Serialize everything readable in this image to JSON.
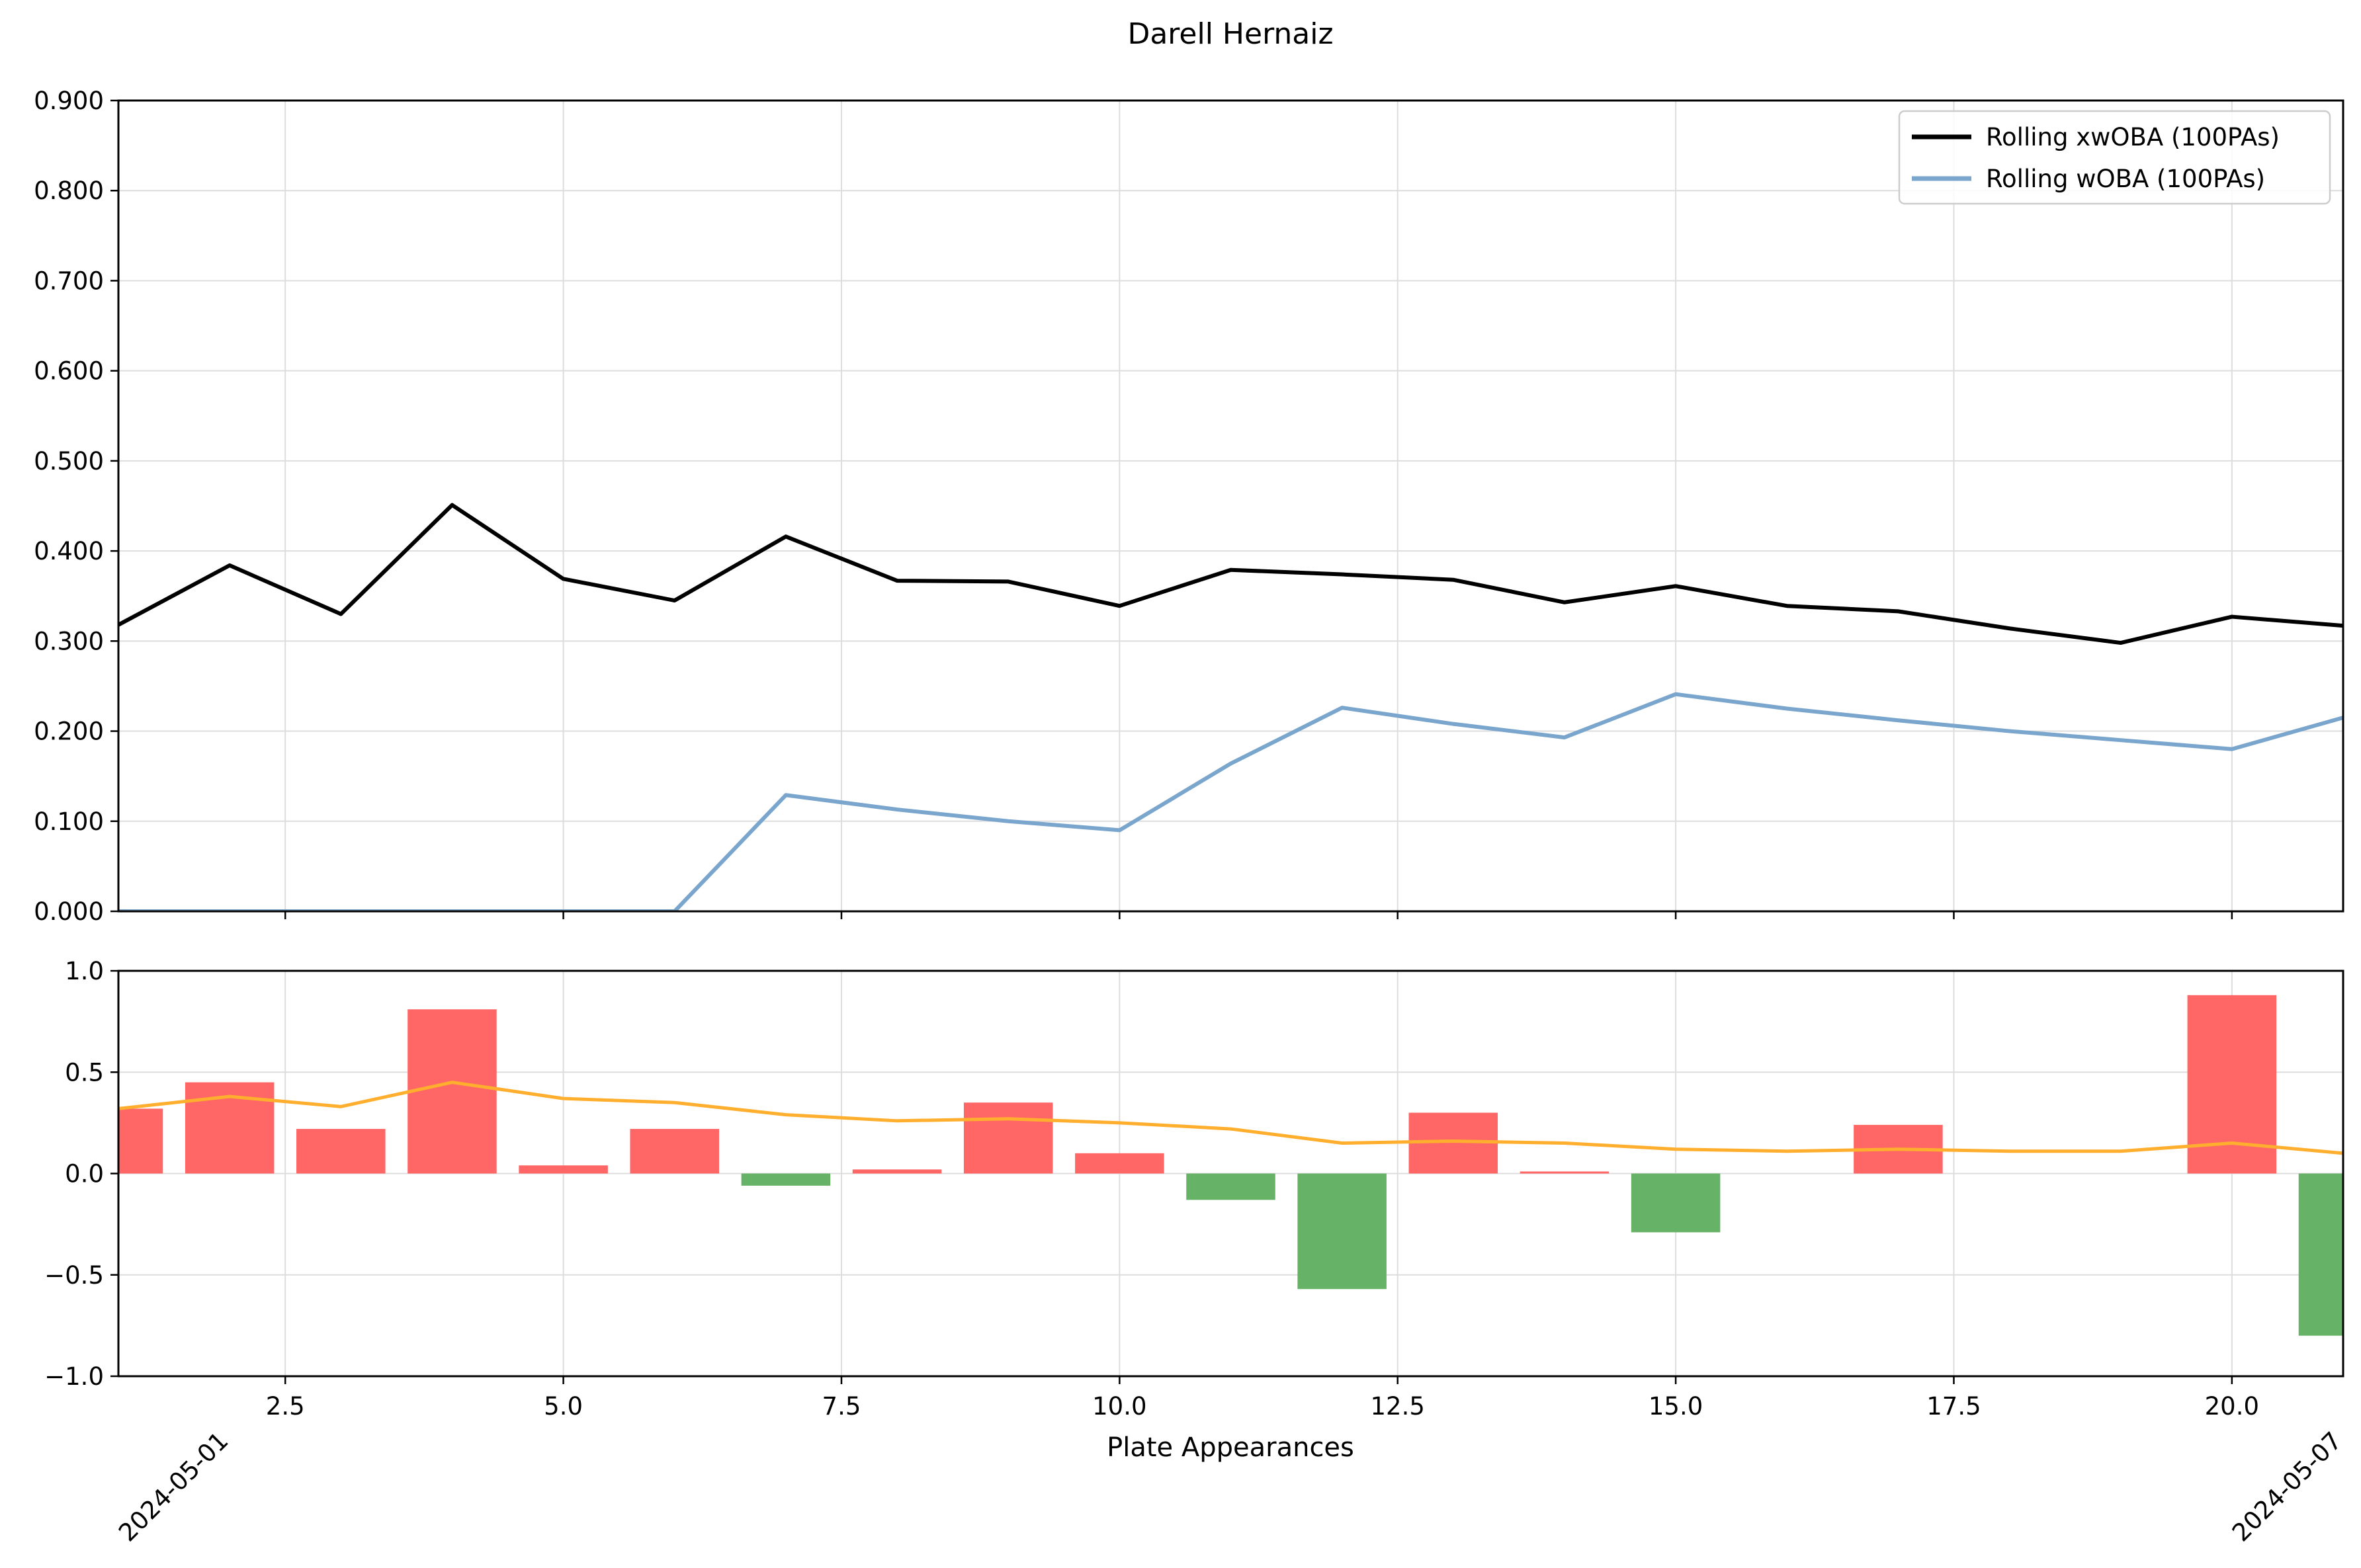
{
  "chart_data": {
    "title": "Darell Hernaiz",
    "xlabel": "Plate Appearances",
    "colors": {
      "xwoba_line": "#000000",
      "woba_line": "#7aa6cd",
      "bar_positive": "#ff6666",
      "bar_negative": "#66b266",
      "diff_line": "#ffae2e",
      "grid": "#dddddd"
    },
    "top": {
      "type": "line",
      "ylim": [
        0,
        0.9
      ],
      "yticks": [
        "0.000",
        "0.100",
        "0.200",
        "0.300",
        "0.400",
        "0.500",
        "0.600",
        "0.700",
        "0.800",
        "0.900"
      ],
      "grid": true,
      "legend_position": "top-right",
      "series": [
        {
          "name": "Rolling xwOBA (100PAs)",
          "x": [
            1,
            2,
            3,
            4,
            5,
            6,
            7,
            8,
            9,
            10,
            11,
            12,
            13,
            14,
            15,
            16,
            17,
            18,
            19,
            20,
            21
          ],
          "values": [
            0.318,
            0.384,
            0.33,
            0.451,
            0.369,
            0.345,
            0.416,
            0.367,
            0.366,
            0.339,
            0.379,
            0.374,
            0.368,
            0.343,
            0.361,
            0.339,
            0.333,
            0.314,
            0.298,
            0.327,
            0.317
          ]
        },
        {
          "name": "Rolling wOBA (100PAs)",
          "x": [
            1,
            2,
            3,
            4,
            5,
            6,
            7,
            8,
            9,
            10,
            11,
            12,
            13,
            14,
            15,
            16,
            17,
            18,
            19,
            20,
            21
          ],
          "values": [
            0.0,
            0.0,
            0.0,
            0.0,
            0.0,
            0.0,
            0.129,
            0.113,
            0.1,
            0.09,
            0.164,
            0.226,
            0.208,
            0.193,
            0.241,
            0.225,
            0.212,
            0.2,
            0.19,
            0.18,
            0.215
          ]
        }
      ]
    },
    "bottom": {
      "type": "bar",
      "ylim": [
        -1,
        1
      ],
      "yticks": [
        "−1.0",
        "−0.5",
        "0.0",
        "0.5",
        "1.0"
      ],
      "grid": true,
      "bars": {
        "x": [
          1,
          2,
          3,
          4,
          5,
          6,
          7,
          8,
          9,
          10,
          11,
          12,
          13,
          14,
          15,
          16,
          17,
          18,
          19,
          20,
          21
        ],
        "values": [
          0.32,
          0.45,
          0.22,
          0.81,
          0.04,
          0.22,
          -0.06,
          0.02,
          0.35,
          0.1,
          -0.13,
          -0.57,
          0.3,
          0.01,
          -0.29,
          0.0,
          0.24,
          0.0,
          0.0,
          0.88,
          -0.8
        ]
      },
      "line": {
        "x": [
          1,
          2,
          3,
          4,
          5,
          6,
          7,
          8,
          9,
          10,
          11,
          12,
          13,
          14,
          15,
          16,
          17,
          18,
          19,
          20,
          21
        ],
        "values": [
          0.32,
          0.38,
          0.33,
          0.45,
          0.37,
          0.35,
          0.29,
          0.26,
          0.27,
          0.25,
          0.22,
          0.15,
          0.16,
          0.15,
          0.12,
          0.11,
          0.12,
          0.11,
          0.11,
          0.15,
          0.1
        ]
      }
    },
    "xlim": [
      1,
      21
    ],
    "xticks": [
      {
        "value": 2.5,
        "label": "2.5"
      },
      {
        "value": 5.0,
        "label": "5.0"
      },
      {
        "value": 7.5,
        "label": "7.5"
      },
      {
        "value": 10.0,
        "label": "10.0"
      },
      {
        "value": 12.5,
        "label": "12.5"
      },
      {
        "value": 15.0,
        "label": "15.0"
      },
      {
        "value": 17.5,
        "label": "17.5"
      },
      {
        "value": 20.0,
        "label": "20.0"
      }
    ],
    "date_labels": [
      {
        "value": 2,
        "label": "2024-05-01"
      },
      {
        "value": 21,
        "label": "2024-05-07"
      }
    ]
  }
}
